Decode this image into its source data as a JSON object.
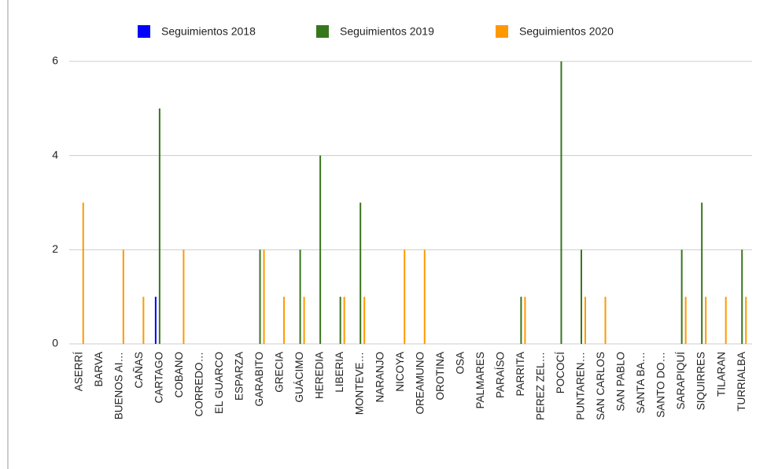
{
  "chart_data": {
    "type": "bar",
    "categories": [
      "ASERRÍ",
      "BARVA",
      "BUENOS AI…",
      "CAÑAS",
      "CARTAGO",
      "COBANO",
      "CORREDO…",
      "EL GUARCO",
      "ESPARZA",
      "GARABITO",
      "GRECIA",
      "GUÁCIMO",
      "HEREDIA",
      "LIBERIA",
      "MONTEVE…",
      "NARANJO",
      "NICOYA",
      "OREAMUNO",
      "OROTINA",
      "OSA",
      "PALMARES",
      "PARAÍSO",
      "PARRITA",
      "PEREZ ZEL…",
      "POCOCÍ",
      "PUNTAREN…",
      "SAN CARLOS",
      "SAN PABLO",
      "SANTA BA…",
      "SANTO DO…",
      "SARAPIQUÍ",
      "SIQUIRRES",
      "TILARAN",
      "TURRIALBA"
    ],
    "series": [
      {
        "name": "Seguimientos 2018",
        "color": "#0000ff",
        "values": [
          0,
          0,
          0,
          0,
          1,
          0,
          0,
          0,
          0,
          0,
          0,
          0,
          0,
          0,
          0,
          0,
          0,
          0,
          0,
          0,
          0,
          0,
          0,
          0,
          0,
          0,
          0,
          0,
          0,
          0,
          0,
          0,
          0,
          0
        ]
      },
      {
        "name": "Seguimientos 2019",
        "color": "#38761d",
        "values": [
          0,
          0,
          0,
          0,
          5,
          0,
          0,
          0,
          0,
          2,
          0,
          2,
          4,
          1,
          3,
          0,
          0,
          0,
          0,
          0,
          0,
          0,
          1,
          0,
          6,
          2,
          0,
          0,
          0,
          0,
          2,
          3,
          0,
          2
        ]
      },
      {
        "name": "Seguimientos 2020",
        "color": "#ff9900",
        "values": [
          3,
          0,
          2,
          1,
          0,
          2,
          0,
          0,
          0,
          2,
          1,
          1,
          0,
          1,
          1,
          0,
          2,
          2,
          0,
          0,
          0,
          0,
          1,
          0,
          0,
          1,
          1,
          0,
          0,
          0,
          1,
          1,
          1,
          1
        ]
      }
    ],
    "ylim": [
      0,
      6
    ],
    "yticks": [
      0,
      2,
      4,
      6
    ],
    "grid": true,
    "legend": "top"
  }
}
